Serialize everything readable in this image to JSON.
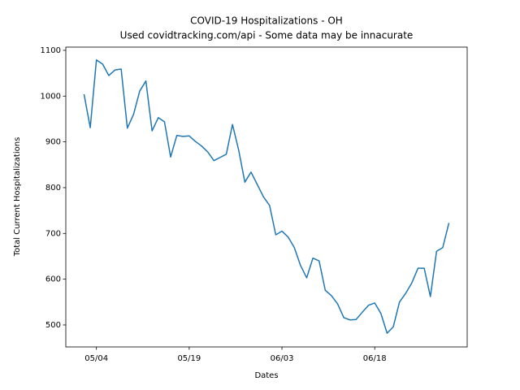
{
  "chart_data": {
    "type": "line",
    "title": "COVID-19 Hospitalizations - OH",
    "subtitle": "Used covidtracking.com/api - Some data may be innacurate",
    "x_label": "Dates",
    "y_label": "Total Current Hospitalizations",
    "x": [
      "05/02",
      "05/03",
      "05/04",
      "05/05",
      "05/06",
      "05/07",
      "05/08",
      "05/09",
      "05/10",
      "05/11",
      "05/12",
      "05/13",
      "05/14",
      "05/15",
      "05/16",
      "05/17",
      "05/18",
      "05/19",
      "05/20",
      "05/21",
      "05/22",
      "05/23",
      "05/24",
      "05/25",
      "05/26",
      "05/27",
      "05/28",
      "05/29",
      "05/30",
      "05/31",
      "06/01",
      "06/02",
      "06/03",
      "06/04",
      "06/05",
      "06/06",
      "06/07",
      "06/08",
      "06/09",
      "06/10",
      "06/11",
      "06/12",
      "06/13",
      "06/14",
      "06/15",
      "06/16",
      "06/17",
      "06/18",
      "06/19",
      "06/20",
      "06/21",
      "06/22",
      "06/23",
      "06/24",
      "06/25",
      "06/26",
      "06/27",
      "06/28",
      "06/29",
      "06/30"
    ],
    "values": [
      1004,
      931,
      1079,
      1070,
      1045,
      1057,
      1059,
      930,
      960,
      1011,
      1033,
      924,
      953,
      944,
      867,
      914,
      912,
      913,
      901,
      891,
      878,
      859,
      866,
      873,
      938,
      882,
      812,
      834,
      807,
      780,
      761,
      697,
      705,
      692,
      669,
      630,
      603,
      646,
      640,
      576,
      564,
      546,
      516,
      511,
      512,
      528,
      543,
      548,
      525,
      482,
      496,
      550,
      569,
      592,
      624,
      624,
      562,
      661,
      669,
      723
    ],
    "color": "#1f77b4",
    "xticks": [
      "05/04",
      "05/19",
      "06/03",
      "06/18"
    ],
    "ylim": [
      452,
      1107
    ],
    "yticks": [
      500,
      600,
      700,
      800,
      900,
      1000,
      1100
    ]
  }
}
